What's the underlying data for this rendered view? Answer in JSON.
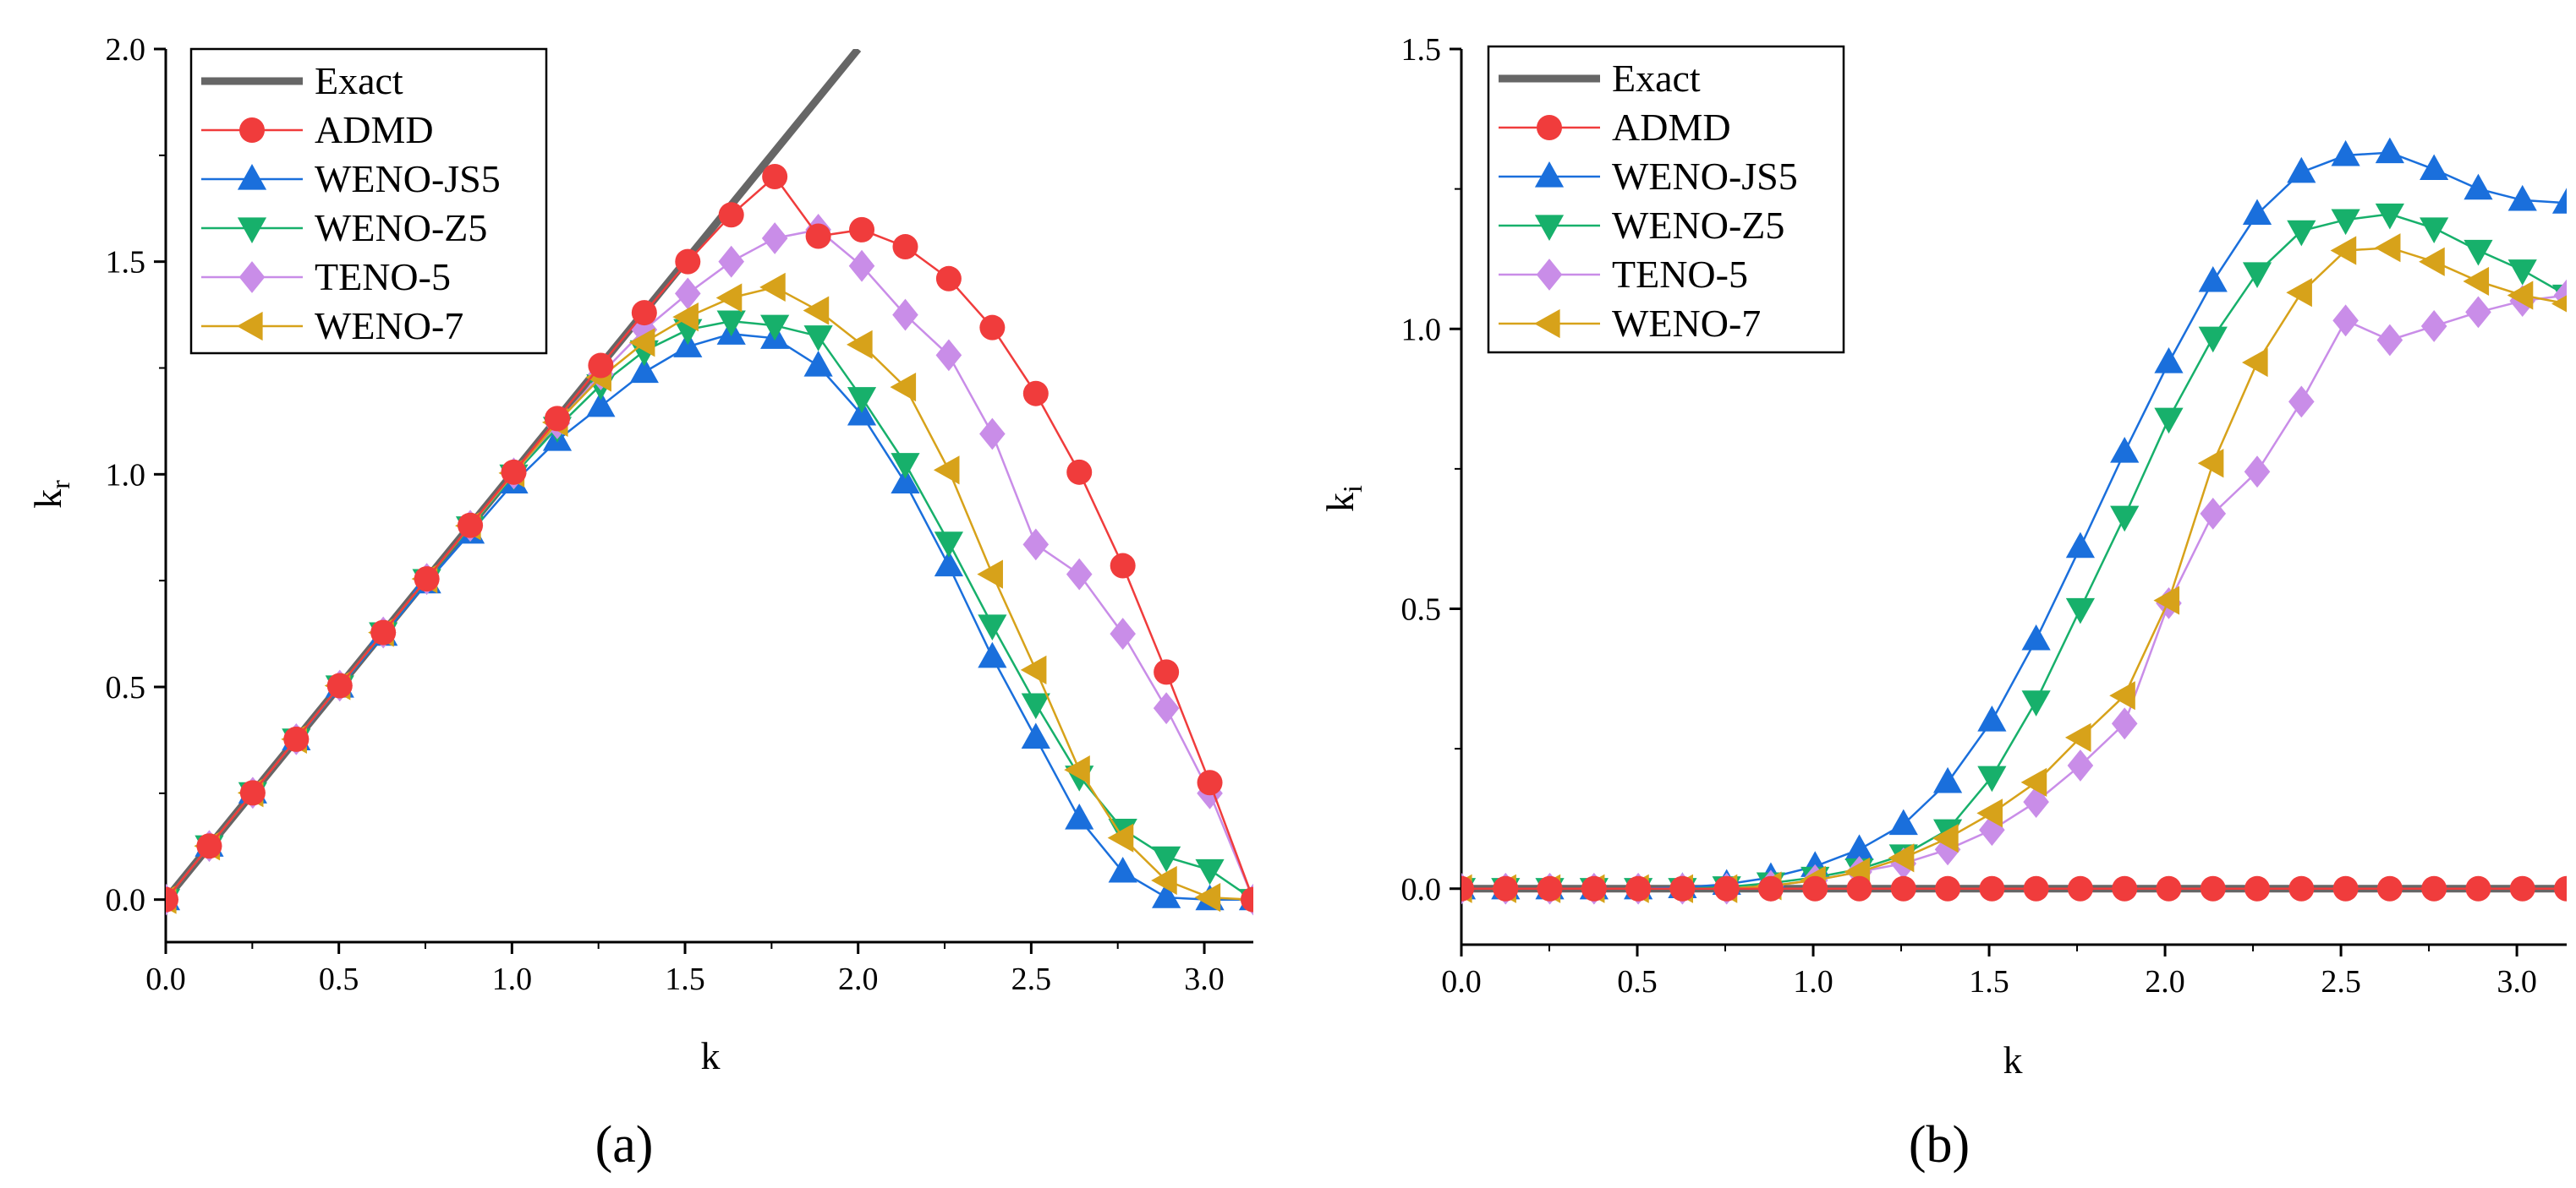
{
  "panels": [
    {
      "id": "a",
      "label": "(a)"
    },
    {
      "id": "b",
      "label": "(b)"
    }
  ],
  "colors": {
    "Exact": "#666666",
    "ADMD": "#f03c3c",
    "WENO-JS5": "#1a6fdc",
    "WENO-Z5": "#17b06b",
    "TENO-5": "#c98de8",
    "WENO-7": "#d7a21a"
  },
  "chart_data": [
    {
      "type": "line",
      "title": "(a)",
      "xlabel": "k",
      "ylabel": "k",
      "ylabel_sub": "r",
      "xlim": [
        0,
        3.1416
      ],
      "ylim": [
        -0.1,
        2.0
      ],
      "xticks": [
        0.0,
        0.5,
        1.0,
        1.5,
        2.0,
        2.5,
        3.0
      ],
      "xtick_labels": [
        "0.0",
        "0.5",
        "1.0",
        "1.5",
        "2.0",
        "2.5",
        "3.0"
      ],
      "yticks": [
        0.0,
        0.5,
        1.0,
        1.5,
        2.0
      ],
      "ytick_labels": [
        "0.0",
        "0.5",
        "1.0",
        "1.5",
        "2.0"
      ],
      "legend": [
        "Exact",
        "ADMD",
        "WENO-JS5",
        "WENO-Z5",
        "TENO-5",
        "WENO-7"
      ],
      "legend_position": "top-left",
      "x": [
        0,
        0.1257,
        0.2513,
        0.377,
        0.5027,
        0.6283,
        0.754,
        0.8796,
        1.0053,
        1.131,
        1.2566,
        1.3823,
        1.508,
        1.6336,
        1.7593,
        1.885,
        2.0106,
        2.1363,
        2.2619,
        2.3876,
        2.5133,
        2.6389,
        2.7646,
        2.8903,
        3.0159,
        3.1416
      ],
      "series": [
        {
          "name": "Exact",
          "marker": "none",
          "x": [
            0,
            2.0
          ],
          "values": [
            0,
            2.0
          ]
        },
        {
          "name": "ADMD",
          "marker": "circle",
          "values": [
            0,
            0.126,
            0.251,
            0.377,
            0.503,
            0.628,
            0.754,
            0.88,
            1.005,
            1.131,
            1.256,
            1.38,
            1.5,
            1.61,
            1.7,
            1.56,
            1.575,
            1.535,
            1.46,
            1.345,
            1.19,
            1.005,
            0.785,
            0.535,
            0.275,
            0.0
          ]
        },
        {
          "name": "WENO-JS5",
          "marker": "triangle-up",
          "values": [
            0,
            0.126,
            0.251,
            0.376,
            0.5,
            0.622,
            0.745,
            0.862,
            0.98,
            1.08,
            1.16,
            1.24,
            1.3,
            1.33,
            1.32,
            1.255,
            1.14,
            0.98,
            0.785,
            0.57,
            0.38,
            0.19,
            0.065,
            0.005,
            0.0,
            0.0
          ]
        },
        {
          "name": "WENO-Z5",
          "marker": "triangle-down",
          "values": [
            0,
            0.126,
            0.251,
            0.377,
            0.502,
            0.627,
            0.752,
            0.876,
            0.998,
            1.11,
            1.21,
            1.29,
            1.34,
            1.36,
            1.35,
            1.325,
            1.18,
            1.025,
            0.84,
            0.645,
            0.46,
            0.29,
            0.165,
            0.1,
            0.07,
            0.0
          ]
        },
        {
          "name": "TENO-5",
          "marker": "diamond",
          "values": [
            0,
            0.126,
            0.251,
            0.377,
            0.503,
            0.628,
            0.754,
            0.879,
            1.002,
            1.12,
            1.235,
            1.34,
            1.425,
            1.5,
            1.555,
            1.575,
            1.49,
            1.375,
            1.28,
            1.095,
            0.835,
            0.765,
            0.625,
            0.45,
            0.25,
            0.0
          ]
        },
        {
          "name": "WENO-7",
          "marker": "triangle-left",
          "values": [
            0,
            0.126,
            0.251,
            0.377,
            0.503,
            0.628,
            0.754,
            0.879,
            1.003,
            1.122,
            1.228,
            1.31,
            1.37,
            1.415,
            1.44,
            1.385,
            1.305,
            1.205,
            1.01,
            0.765,
            0.54,
            0.305,
            0.145,
            0.045,
            0.005,
            0.0
          ]
        }
      ]
    },
    {
      "type": "line",
      "title": "(b)",
      "xlabel": "k",
      "ylabel": "k",
      "ylabel_sub": "i",
      "xlim": [
        0,
        3.1416
      ],
      "ylim": [
        -0.1,
        1.5
      ],
      "xticks": [
        0.0,
        0.5,
        1.0,
        1.5,
        2.0,
        2.5,
        3.0
      ],
      "xtick_labels": [
        "0.0",
        "0.5",
        "1.0",
        "1.5",
        "2.0",
        "2.5",
        "3.0"
      ],
      "yticks": [
        0.0,
        0.5,
        1.0,
        1.5
      ],
      "ytick_labels": [
        "0.0",
        "0.5",
        "1.0",
        "1.5"
      ],
      "legend": [
        "Exact",
        "ADMD",
        "WENO-JS5",
        "WENO-Z5",
        "TENO-5",
        "WENO-7"
      ],
      "legend_position": "top-left",
      "x": [
        0,
        0.1257,
        0.2513,
        0.377,
        0.5027,
        0.6283,
        0.754,
        0.8796,
        1.0053,
        1.131,
        1.2566,
        1.3823,
        1.508,
        1.6336,
        1.7593,
        1.885,
        2.0106,
        2.1363,
        2.2619,
        2.3876,
        2.5133,
        2.6389,
        2.7646,
        2.8903,
        3.0159,
        3.1416
      ],
      "series": [
        {
          "name": "Exact",
          "marker": "none",
          "x": [
            0,
            3.1416
          ],
          "values": [
            0,
            0
          ]
        },
        {
          "name": "ADMD",
          "marker": "circle",
          "values": [
            0,
            0,
            0,
            0,
            0,
            0,
            0,
            0,
            0,
            0,
            0,
            0,
            0,
            0,
            0,
            0,
            0,
            0,
            0,
            0,
            0,
            0,
            0,
            0,
            0,
            0
          ]
        },
        {
          "name": "WENO-JS5",
          "marker": "triangle-up",
          "values": [
            0,
            0,
            0,
            0,
            0,
            0.002,
            0.008,
            0.02,
            0.04,
            0.07,
            0.115,
            0.19,
            0.3,
            0.445,
            0.61,
            0.78,
            0.94,
            1.085,
            1.205,
            1.28,
            1.31,
            1.315,
            1.285,
            1.25,
            1.23,
            1.225
          ]
        },
        {
          "name": "WENO-Z5",
          "marker": "triangle-down",
          "values": [
            0,
            0,
            0,
            0,
            0,
            0,
            0.003,
            0.01,
            0.02,
            0.035,
            0.06,
            0.105,
            0.2,
            0.335,
            0.5,
            0.665,
            0.84,
            0.985,
            1.1,
            1.175,
            1.195,
            1.205,
            1.18,
            1.14,
            1.105,
            1.06
          ]
        },
        {
          "name": "TENO-5",
          "marker": "diamond",
          "values": [
            0,
            0,
            0,
            0,
            0,
            0,
            0,
            0.005,
            0.015,
            0.03,
            0.045,
            0.07,
            0.105,
            0.155,
            0.22,
            0.295,
            0.51,
            0.67,
            0.745,
            0.87,
            1.015,
            0.98,
            1.005,
            1.03,
            1.05,
            1.06
          ]
        },
        {
          "name": "WENO-7",
          "marker": "triangle-left",
          "values": [
            0,
            0,
            0,
            0,
            0,
            0,
            0,
            0.005,
            0.015,
            0.03,
            0.055,
            0.09,
            0.135,
            0.19,
            0.27,
            0.345,
            0.515,
            0.76,
            0.94,
            1.065,
            1.14,
            1.145,
            1.12,
            1.085,
            1.06,
            1.045
          ]
        }
      ]
    }
  ]
}
